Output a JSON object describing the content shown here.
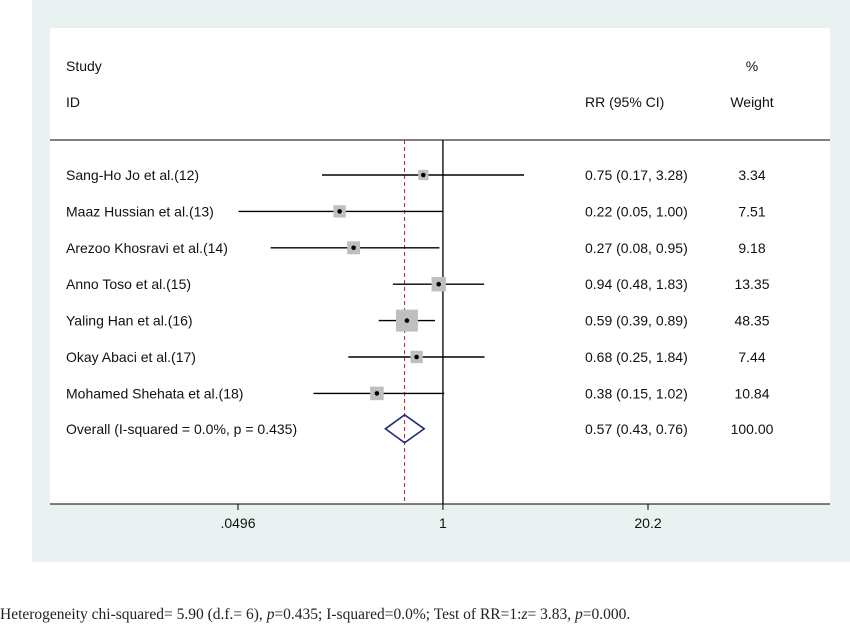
{
  "chart_data": {
    "type": "forest",
    "headers": {
      "study_line1": "Study",
      "study_line2": "ID",
      "rr_header": "RR (95% CI)",
      "weight_line1": "%",
      "weight_line2": "Weight"
    },
    "scale": "log",
    "null_value": 1,
    "x_ticks": [
      {
        "value": 0.0496,
        "label": ".0496"
      },
      {
        "value": 1,
        "label": "1"
      },
      {
        "value": 20.2,
        "label": "20.2"
      }
    ],
    "xlim": [
      0.0496,
      20.2
    ],
    "studies": [
      {
        "name": "Sang-Ho Jo et al.(12)",
        "rr": 0.75,
        "lower": 0.17,
        "upper": 3.28,
        "ci_text": "0.75 (0.17, 3.28)",
        "weight": 3.34,
        "weight_text": "3.34"
      },
      {
        "name": "Maaz Hussian et al.(13)",
        "rr": 0.22,
        "lower": 0.05,
        "upper": 1.0,
        "ci_text": "0.22 (0.05, 1.00)",
        "weight": 7.51,
        "weight_text": "7.51"
      },
      {
        "name": "Arezoo Khosravi et al.(14)",
        "rr": 0.27,
        "lower": 0.08,
        "upper": 0.95,
        "ci_text": "0.27 (0.08, 0.95)",
        "weight": 9.18,
        "weight_text": "9.18"
      },
      {
        "name": "Anno Toso et al.(15)",
        "rr": 0.94,
        "lower": 0.48,
        "upper": 1.83,
        "ci_text": "0.94 (0.48, 1.83)",
        "weight": 13.35,
        "weight_text": "13.35"
      },
      {
        "name": "Yaling Han et al.(16)",
        "rr": 0.59,
        "lower": 0.39,
        "upper": 0.89,
        "ci_text": "0.59 (0.39, 0.89)",
        "weight": 48.35,
        "weight_text": "48.35"
      },
      {
        "name": "Okay Abaci et al.(17)",
        "rr": 0.68,
        "lower": 0.25,
        "upper": 1.84,
        "ci_text": "0.68 (0.25, 1.84)",
        "weight": 7.44,
        "weight_text": "7.44"
      },
      {
        "name": "Mohamed Shehata et al.(18)",
        "rr": 0.38,
        "lower": 0.15,
        "upper": 1.02,
        "ci_text": "0.38 (0.15, 1.02)",
        "weight": 10.84,
        "weight_text": "10.84"
      }
    ],
    "overall": {
      "name": "Overall  (I-squared = 0.0%, p = 0.435)",
      "rr": 0.57,
      "lower": 0.43,
      "upper": 0.76,
      "ci_text": "0.57 (0.43, 0.76)",
      "weight_text": "100.00"
    },
    "colors": {
      "panel_background": "#e9f1f1",
      "plot_background": "#ffffff",
      "ci_line": "#000000",
      "weight_box": "#bfbfbf",
      "overall_diamond": "#1f2a7a",
      "overall_line": "#b22222"
    }
  },
  "footer": {
    "part1": "Heterogeneity chi-squared= 5.90 (d.f.= 6), ",
    "p1_symbol": "p",
    "part2": "=0.435; I-squared=0.0%; Test of RR=1:",
    "z_symbol": "z",
    "part3": "= 3.83, ",
    "p2_symbol": "p",
    "part4": "=0.000."
  }
}
